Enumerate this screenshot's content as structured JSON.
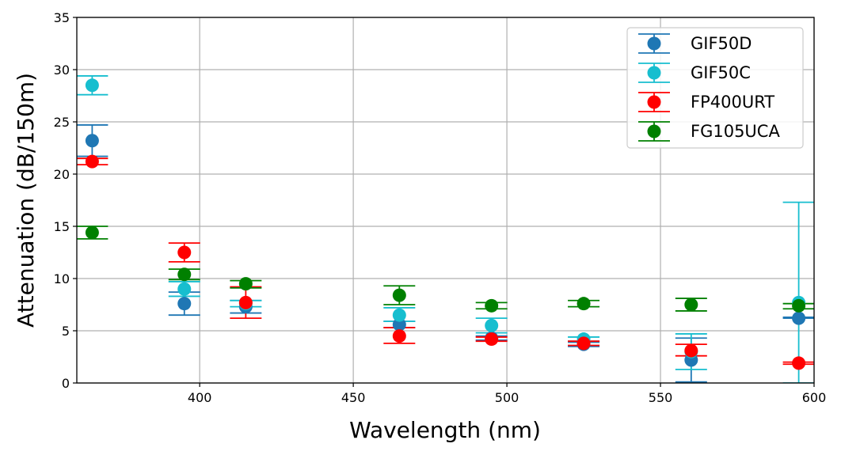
{
  "chart_data": {
    "type": "scatter",
    "title": "",
    "xlabel": "Wavelength (nm)",
    "ylabel": "Attenuation (dB/150m)",
    "xlim": [
      360,
      600
    ],
    "ylim": [
      0,
      35
    ],
    "xticks": [
      400,
      450,
      500,
      550,
      600
    ],
    "yticks": [
      0,
      5,
      10,
      15,
      20,
      25,
      30,
      35
    ],
    "grid": true,
    "legend_position": "top-right",
    "series": [
      {
        "name": "GIF50D",
        "color": "#1f77b4",
        "points": [
          {
            "x": 365,
            "y": 23.2,
            "ylow": 21.7,
            "yhigh": 24.7
          },
          {
            "x": 395,
            "y": 7.6,
            "ylow": 6.5,
            "yhigh": 8.7
          },
          {
            "x": 415,
            "y": 7.3,
            "ylow": 6.7,
            "yhigh": 7.9
          },
          {
            "x": 465,
            "y": 5.6,
            "ylow": 5.3,
            "yhigh": 5.9
          },
          {
            "x": 495,
            "y": 4.3,
            "ylow": 4.1,
            "yhigh": 4.5
          },
          {
            "x": 525,
            "y": 3.7,
            "ylow": 3.5,
            "yhigh": 3.9
          },
          {
            "x": 560,
            "y": 2.2,
            "ylow": 0.1,
            "yhigh": 4.3
          },
          {
            "x": 595,
            "y": 6.2,
            "ylow": 6.2,
            "yhigh": 6.3
          }
        ]
      },
      {
        "name": "GIF50C",
        "color": "#17becf",
        "points": [
          {
            "x": 365,
            "y": 28.5,
            "ylow": 27.6,
            "yhigh": 29.4
          },
          {
            "x": 395,
            "y": 9.0,
            "ylow": 8.3,
            "yhigh": 9.7
          },
          {
            "x": 415,
            "y": 7.6,
            "ylow": 7.3,
            "yhigh": 7.9
          },
          {
            "x": 465,
            "y": 6.5,
            "ylow": 5.9,
            "yhigh": 7.2
          },
          {
            "x": 495,
            "y": 5.5,
            "ylow": 4.8,
            "yhigh": 6.2
          },
          {
            "x": 525,
            "y": 4.2,
            "ylow": 4.0,
            "yhigh": 4.4
          },
          {
            "x": 560,
            "y": 3.0,
            "ylow": 1.3,
            "yhigh": 4.7
          },
          {
            "x": 595,
            "y": 7.7,
            "ylow": 0.0,
            "yhigh": 17.3
          }
        ]
      },
      {
        "name": "FP400URT",
        "color": "#ff0000",
        "points": [
          {
            "x": 365,
            "y": 21.2,
            "ylow": 20.9,
            "yhigh": 21.5
          },
          {
            "x": 395,
            "y": 12.5,
            "ylow": 11.6,
            "yhigh": 13.4
          },
          {
            "x": 415,
            "y": 7.7,
            "ylow": 6.2,
            "yhigh": 9.2
          },
          {
            "x": 465,
            "y": 4.5,
            "ylow": 3.8,
            "yhigh": 5.3
          },
          {
            "x": 495,
            "y": 4.2,
            "ylow": 4.0,
            "yhigh": 4.4
          },
          {
            "x": 525,
            "y": 3.8,
            "ylow": 3.6,
            "yhigh": 4.0
          },
          {
            "x": 560,
            "y": 3.1,
            "ylow": 2.6,
            "yhigh": 3.7
          },
          {
            "x": 595,
            "y": 1.9,
            "ylow": 1.8,
            "yhigh": 2.0
          }
        ]
      },
      {
        "name": "FG105UCA",
        "color": "#008000",
        "points": [
          {
            "x": 365,
            "y": 14.4,
            "ylow": 13.8,
            "yhigh": 15.0
          },
          {
            "x": 395,
            "y": 10.4,
            "ylow": 9.9,
            "yhigh": 10.9
          },
          {
            "x": 415,
            "y": 9.5,
            "ylow": 9.1,
            "yhigh": 9.8
          },
          {
            "x": 465,
            "y": 8.4,
            "ylow": 7.5,
            "yhigh": 9.3
          },
          {
            "x": 495,
            "y": 7.4,
            "ylow": 7.1,
            "yhigh": 7.7
          },
          {
            "x": 525,
            "y": 7.6,
            "ylow": 7.3,
            "yhigh": 7.9
          },
          {
            "x": 560,
            "y": 7.5,
            "ylow": 6.9,
            "yhigh": 8.1
          },
          {
            "x": 595,
            "y": 7.4,
            "ylow": 7.1,
            "yhigh": 7.6
          }
        ]
      }
    ]
  }
}
